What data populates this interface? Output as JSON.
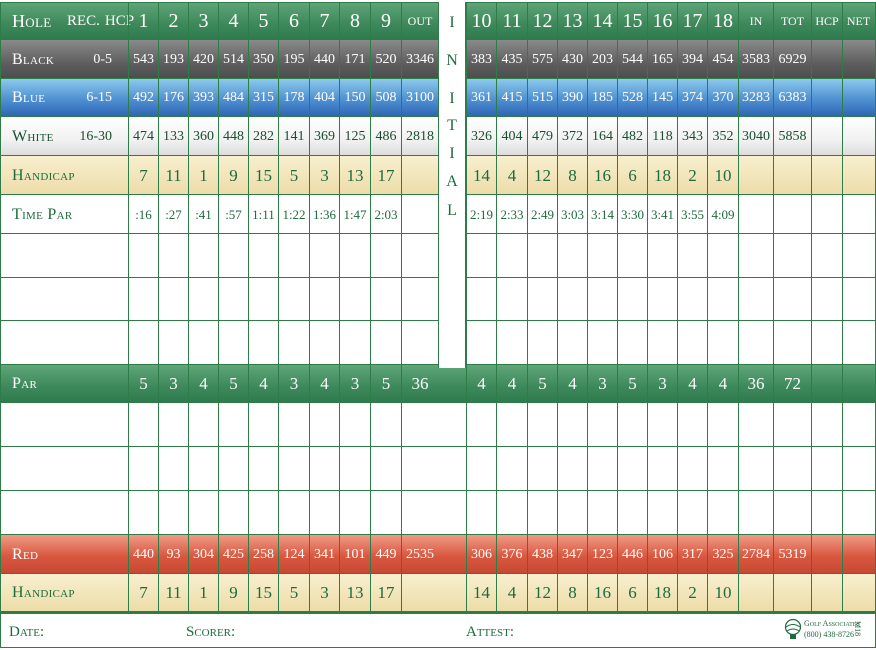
{
  "labels": {
    "hole": "Hole",
    "rec": "REC.",
    "hcp": "HCP",
    "black": "Black",
    "blue": "Blue",
    "white": "White",
    "handicap": "Handicap",
    "time_par": "Time Par",
    "par": "Par",
    "red": "Red",
    "handicap2": "Handicap"
  },
  "ranges": {
    "black": "0-5",
    "blue": "6-15",
    "white": "16-30"
  },
  "holes_front": [
    "1",
    "2",
    "3",
    "4",
    "5",
    "6",
    "7",
    "8",
    "9"
  ],
  "holes_back": [
    "10",
    "11",
    "12",
    "13",
    "14",
    "15",
    "16",
    "17",
    "18"
  ],
  "headers": {
    "out": "OUT",
    "in": "IN",
    "tot": "TOT",
    "hcp": "HCP",
    "net": "NET"
  },
  "initial": [
    "I",
    "N",
    "I",
    "T",
    "I",
    "A",
    "L"
  ],
  "black": {
    "front": [
      "543",
      "193",
      "420",
      "514",
      "350",
      "195",
      "440",
      "171",
      "520"
    ],
    "out": "3346",
    "back": [
      "383",
      "435",
      "575",
      "430",
      "203",
      "544",
      "165",
      "394",
      "454"
    ],
    "in": "3583",
    "tot": "6929"
  },
  "blue": {
    "front": [
      "492",
      "176",
      "393",
      "484",
      "315",
      "178",
      "404",
      "150",
      "508"
    ],
    "out": "3100",
    "back": [
      "361",
      "415",
      "515",
      "390",
      "185",
      "528",
      "145",
      "374",
      "370"
    ],
    "in": "3283",
    "tot": "6383"
  },
  "white": {
    "front": [
      "474",
      "133",
      "360",
      "448",
      "282",
      "141",
      "369",
      "125",
      "486"
    ],
    "out": "2818",
    "back": [
      "326",
      "404",
      "479",
      "372",
      "164",
      "482",
      "118",
      "343",
      "352"
    ],
    "in": "3040",
    "tot": "5858"
  },
  "handicap": {
    "front": [
      "7",
      "11",
      "1",
      "9",
      "15",
      "5",
      "3",
      "13",
      "17"
    ],
    "back": [
      "14",
      "4",
      "12",
      "8",
      "16",
      "6",
      "18",
      "2",
      "10"
    ]
  },
  "time_par": {
    "front": [
      ":16",
      ":27",
      ":41",
      ":57",
      "1:11",
      "1:22",
      "1:36",
      "1:47",
      "2:03"
    ],
    "back": [
      "2:19",
      "2:33",
      "2:49",
      "3:03",
      "3:14",
      "3:30",
      "3:41",
      "3:55",
      "4:09"
    ]
  },
  "par": {
    "front": [
      "5",
      "3",
      "4",
      "5",
      "4",
      "3",
      "4",
      "3",
      "5"
    ],
    "out": "36",
    "back": [
      "4",
      "4",
      "5",
      "4",
      "3",
      "5",
      "3",
      "4",
      "4"
    ],
    "in": "36",
    "tot": "72"
  },
  "red": {
    "front": [
      "440",
      "93",
      "304",
      "425",
      "258",
      "124",
      "341",
      "101",
      "449"
    ],
    "out": "2535",
    "back": [
      "306",
      "376",
      "438",
      "347",
      "123",
      "446",
      "106",
      "317",
      "325"
    ],
    "in": "2784",
    "tot": "5319"
  },
  "footer": {
    "date": "Date:",
    "scorer": "Scorer:",
    "attest": "Attest:"
  },
  "logo": {
    "line1": "Golf Associates",
    "line2": "(800) 438-8726",
    "code": "M18"
  },
  "colors": {
    "green": "#3f8a5c",
    "black": "#5e5e5e",
    "blue": "#4d8fd0",
    "cream": "#ecdca7",
    "red": "#d9573f",
    "text": "#1d6a3e"
  }
}
